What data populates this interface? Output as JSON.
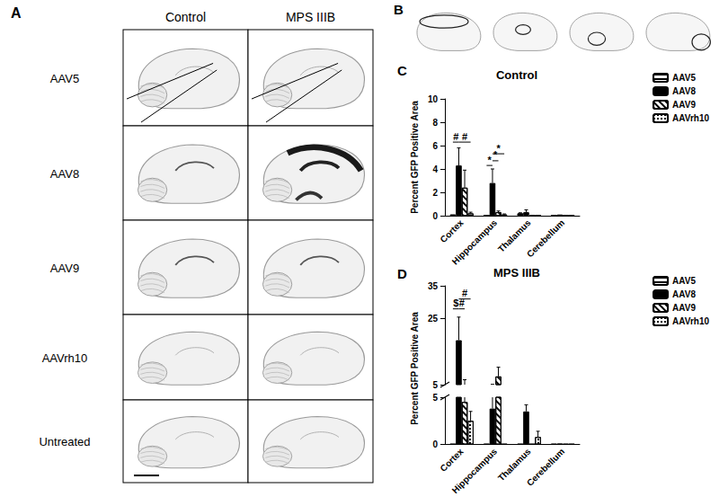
{
  "figure": {
    "panel_a": {
      "label": "A",
      "columns": [
        "Control",
        "MPS IIIB"
      ],
      "rows": [
        "AAV5",
        "AAV8",
        "AAV9",
        "AAVrh10",
        "Untreated"
      ]
    },
    "panel_b": {
      "label": "B"
    }
  },
  "chart_data": [
    {
      "panel": "C",
      "type": "bar",
      "title": "Control",
      "ylabel": "Percent GFP Positive Area",
      "categories": [
        "Cortex",
        "Hippocampus",
        "Thalamus",
        "Cerebellum"
      ],
      "series": [
        {
          "name": "AAV5",
          "color": "#ffffff",
          "marker": "horizontal_lines",
          "values": [
            0.1,
            0.05,
            0.2,
            0.05
          ],
          "errors": [
            0,
            0,
            0.05,
            0
          ]
        },
        {
          "name": "AAV8",
          "color": "#000000",
          "marker": "solid",
          "values": [
            4.3,
            2.8,
            0.3,
            0.1
          ],
          "errors": [
            1.5,
            1.2,
            0.2,
            0
          ]
        },
        {
          "name": "AAV9",
          "color": "#ffffff",
          "marker": "diagonal_lines",
          "values": [
            2.4,
            0.3,
            0.05,
            0.05
          ],
          "errors": [
            1.5,
            0.1,
            0,
            0
          ]
        },
        {
          "name": "AAVrh10",
          "color": "#ffffff",
          "marker": "dots",
          "values": [
            0.2,
            0.1,
            0.05,
            0.05
          ],
          "errors": [
            0.1,
            0.05,
            0,
            0
          ]
        }
      ],
      "ylim": [
        0,
        10
      ],
      "yticks": [
        0,
        2,
        4,
        6,
        8,
        10
      ],
      "grid": false,
      "legend": "upper right",
      "annotations": [
        {
          "text": "#",
          "category": "Cortex",
          "from": "AAV5",
          "to": "AAV8",
          "y": 6.3
        },
        {
          "text": "#",
          "category": "Cortex",
          "from": "AAV8",
          "to": "AAVrh10",
          "y": 6.3
        },
        {
          "text": "*",
          "category": "Hippocampus",
          "from": "AAV5",
          "to": "AAV8",
          "y": 4.3
        },
        {
          "text": "*",
          "category": "Hippocampus",
          "from": "AAV8",
          "to": "AAV9",
          "y": 4.7
        },
        {
          "text": "*",
          "category": "Hippocampus",
          "from": "AAV8",
          "to": "AAVrh10",
          "y": 5.3
        }
      ]
    },
    {
      "panel": "D",
      "type": "bar",
      "title": "MPS IIIB",
      "ylabel": "Percent GFP Positive Area",
      "categories": [
        "Cortex",
        "Hippocampus",
        "Thalamus",
        "Cerebellum"
      ],
      "series": [
        {
          "name": "AAV5",
          "color": "#ffffff",
          "marker": "horizontal_lines",
          "values": [
            0.05,
            0.05,
            0.05,
            0.05
          ],
          "errors": [
            0,
            0,
            0,
            0
          ]
        },
        {
          "name": "AAV8",
          "color": "#000000",
          "marker": "solid",
          "values": [
            18.5,
            3.8,
            3.5,
            0.1
          ],
          "errors": [
            7,
            1.3,
            0.7,
            0
          ]
        },
        {
          "name": "AAV9",
          "color": "#ffffff",
          "marker": "diagonal_lines",
          "values": [
            4.5,
            7.5,
            0.05,
            0.05
          ],
          "errors": [
            2,
            2.8,
            0,
            0
          ]
        },
        {
          "name": "AAVrh10",
          "color": "#ffffff",
          "marker": "dots",
          "values": [
            2.5,
            0.05,
            0.8,
            0.05
          ],
          "errors": [
            1,
            0,
            0.6,
            0
          ]
        }
      ],
      "y_segments": [
        {
          "ylim": [
            0,
            5
          ],
          "yticks": [
            0,
            5
          ]
        },
        {
          "ylim": [
            5,
            35
          ],
          "yticks": [
            5,
            25,
            35
          ]
        }
      ],
      "grid": false,
      "legend": "upper right",
      "annotations": [
        {
          "text": "$",
          "category": "Cortex",
          "from": "AAV5",
          "to": "AAV8",
          "y": 28
        },
        {
          "text": "#",
          "category": "Cortex",
          "from": "AAV8",
          "to": "AAV9",
          "y": 28
        },
        {
          "text": "#",
          "category": "Cortex",
          "from": "AAV8",
          "to": "AAVrh10",
          "y": 31
        }
      ]
    }
  ]
}
